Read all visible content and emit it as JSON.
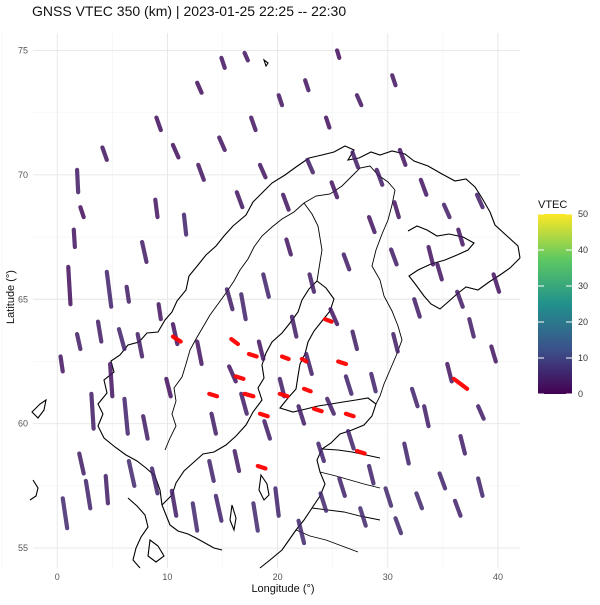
{
  "chart_data": {
    "type": "scatter",
    "title": "GNSS VTEC 350 (km) | 2023-01-25 22:25 -- 22:30",
    "xlabel": "Longitude (°)",
    "ylabel": "Latitude (°)",
    "xlim": [
      -2.2,
      42.0
    ],
    "ylim": [
      54.2,
      75.7
    ],
    "x_ticks": [
      0,
      10,
      20,
      30,
      40
    ],
    "y_ticks": [
      55,
      60,
      65,
      70,
      75
    ],
    "grid": true,
    "legend": {
      "title": "VTEC",
      "placement": "right",
      "range": [
        0,
        50
      ],
      "ticks": [
        0,
        10,
        20,
        30,
        40,
        50
      ],
      "colormap": "viridis"
    },
    "colors": {
      "low": "#440154",
      "mid_low": "#3b3a82",
      "mid": "#21918c",
      "mid_high": "#5ec962",
      "high": "#fde725",
      "outlier": "#ff0000"
    },
    "series": [
      {
        "segments": [
          [
            1.0,
            66.3,
            1.2,
            64.8,
            2
          ],
          [
            1.8,
            70.2,
            1.9,
            69.3,
            4
          ],
          [
            1.5,
            67.8,
            1.6,
            67.1,
            3
          ],
          [
            2.1,
            68.7,
            2.4,
            68.3,
            2
          ],
          [
            4.5,
            66.1,
            4.9,
            64.7,
            5
          ],
          [
            6.3,
            65.5,
            6.5,
            64.9,
            4
          ],
          [
            7.7,
            67.3,
            8.1,
            66.5,
            4
          ],
          [
            8.9,
            69.0,
            9.1,
            68.3,
            3
          ],
          [
            11.5,
            68.4,
            11.7,
            67.6,
            5
          ],
          [
            9.2,
            64.8,
            9.4,
            64.2,
            3
          ],
          [
            3.1,
            61.2,
            3.3,
            59.8,
            4
          ],
          [
            4.8,
            62.4,
            5.0,
            61.1,
            3
          ],
          [
            6.1,
            61.0,
            6.4,
            59.6,
            5
          ],
          [
            7.8,
            60.3,
            8.2,
            59.4,
            4
          ],
          [
            9.9,
            61.8,
            10.3,
            61.1,
            2
          ],
          [
            0.5,
            57.0,
            0.9,
            55.8,
            6
          ],
          [
            2.6,
            57.7,
            3.0,
            56.6,
            5
          ],
          [
            4.4,
            57.9,
            4.6,
            56.8,
            4
          ],
          [
            6.5,
            58.5,
            7.0,
            57.5,
            6
          ],
          [
            8.6,
            58.2,
            9.1,
            57.2,
            5
          ],
          [
            10.4,
            57.3,
            10.8,
            56.3,
            4
          ],
          [
            12.3,
            56.8,
            12.7,
            55.7,
            6
          ],
          [
            14.4,
            57.1,
            14.9,
            56.1,
            5
          ],
          [
            16.1,
            58.9,
            16.5,
            58.1,
            4
          ],
          [
            14.0,
            60.4,
            14.4,
            59.6,
            4
          ],
          [
            15.6,
            62.3,
            16.2,
            61.7,
            3
          ],
          [
            18.3,
            63.3,
            18.7,
            62.6,
            3
          ],
          [
            21.3,
            64.3,
            21.7,
            63.5,
            4
          ],
          [
            16.7,
            65.2,
            17.1,
            64.2,
            5
          ],
          [
            18.7,
            66.0,
            19.2,
            65.1,
            5
          ],
          [
            15.4,
            65.4,
            15.9,
            64.6,
            4
          ],
          [
            20.8,
            67.4,
            21.2,
            66.8,
            3
          ],
          [
            22.9,
            66.0,
            23.3,
            65.3,
            4
          ],
          [
            24.8,
            64.6,
            25.4,
            64.0,
            3
          ],
          [
            26.8,
            63.7,
            27.2,
            63.0,
            4
          ],
          [
            28.5,
            62.0,
            28.9,
            61.3,
            5
          ],
          [
            30.5,
            63.6,
            30.9,
            62.9,
            4
          ],
          [
            32.4,
            65.0,
            32.9,
            64.3,
            4
          ],
          [
            34.5,
            66.4,
            34.9,
            65.8,
            3
          ],
          [
            36.4,
            67.8,
            36.8,
            67.2,
            3
          ],
          [
            38.1,
            69.2,
            38.6,
            68.7,
            4
          ],
          [
            39.6,
            66.0,
            40.1,
            65.3,
            3
          ],
          [
            37.4,
            64.2,
            37.8,
            63.5,
            4
          ],
          [
            35.4,
            62.4,
            35.8,
            61.7,
            3
          ],
          [
            33.3,
            60.7,
            33.7,
            59.9,
            4
          ],
          [
            31.5,
            59.2,
            31.9,
            58.4,
            5
          ],
          [
            29.8,
            57.4,
            30.3,
            56.7,
            6
          ],
          [
            27.5,
            56.6,
            28.0,
            55.9,
            6
          ],
          [
            25.6,
            57.8,
            26.1,
            57.1,
            5
          ],
          [
            23.7,
            59.2,
            24.2,
            58.5,
            5
          ],
          [
            21.9,
            60.7,
            22.4,
            60.0,
            4
          ],
          [
            20.2,
            61.8,
            20.6,
            61.1,
            4
          ],
          [
            24.5,
            61.0,
            25.1,
            60.4,
            4
          ],
          [
            26.4,
            59.7,
            26.9,
            59.0,
            5
          ],
          [
            28.3,
            58.3,
            28.7,
            57.6,
            5
          ],
          [
            30.7,
            56.2,
            31.2,
            55.6,
            6
          ],
          [
            32.6,
            57.2,
            33.1,
            56.6,
            6
          ],
          [
            34.7,
            58.0,
            35.2,
            57.4,
            5
          ],
          [
            36.6,
            59.5,
            37.0,
            58.8,
            4
          ],
          [
            38.2,
            60.7,
            38.7,
            60.2,
            4
          ],
          [
            16.3,
            69.3,
            16.8,
            68.7,
            3
          ],
          [
            18.4,
            70.4,
            18.9,
            69.9,
            3
          ],
          [
            20.5,
            69.2,
            21.0,
            68.6,
            3
          ],
          [
            22.7,
            70.6,
            23.2,
            70.1,
            4
          ],
          [
            24.9,
            69.7,
            25.4,
            69.1,
            3
          ],
          [
            26.8,
            70.9,
            27.3,
            70.3,
            4
          ],
          [
            29.0,
            70.2,
            29.5,
            69.6,
            4
          ],
          [
            31.1,
            71.0,
            31.6,
            70.4,
            3
          ],
          [
            33.0,
            69.8,
            33.5,
            69.2,
            3
          ],
          [
            35.1,
            68.8,
            35.6,
            68.3,
            4
          ],
          [
            28.3,
            68.3,
            28.8,
            67.7,
            3
          ],
          [
            30.3,
            67.0,
            30.8,
            66.4,
            4
          ],
          [
            26.0,
            66.8,
            26.5,
            66.2,
            4
          ],
          [
            12.8,
            70.4,
            13.3,
            69.8,
            3
          ],
          [
            14.7,
            71.5,
            15.2,
            71.0,
            3
          ],
          [
            10.5,
            71.2,
            11.0,
            70.7,
            2
          ],
          [
            17.6,
            72.3,
            18.0,
            71.8,
            3
          ],
          [
            20.1,
            73.2,
            20.4,
            72.8,
            3
          ],
          [
            22.5,
            73.8,
            22.8,
            73.4,
            3
          ],
          [
            24.4,
            72.3,
            24.7,
            71.9,
            2
          ],
          [
            27.2,
            73.2,
            27.6,
            72.8,
            3
          ],
          [
            30.4,
            74.0,
            30.7,
            73.6,
            3
          ],
          [
            12.7,
            73.7,
            13.1,
            73.3,
            2
          ],
          [
            14.9,
            74.7,
            15.2,
            74.3,
            3
          ],
          [
            17.0,
            74.9,
            17.3,
            74.6,
            3
          ],
          [
            9.0,
            72.3,
            9.4,
            71.8,
            2
          ],
          [
            4.1,
            71.1,
            4.5,
            70.6,
            3
          ],
          [
            25.4,
            75.0,
            25.6,
            74.7,
            2
          ],
          [
            0.3,
            62.7,
            0.5,
            62.1,
            3
          ],
          [
            1.8,
            63.6,
            2.1,
            63.0,
            4
          ],
          [
            3.7,
            64.1,
            4.0,
            63.3,
            4
          ],
          [
            5.6,
            63.8,
            6.1,
            63.0,
            5
          ],
          [
            7.3,
            63.6,
            7.7,
            62.7,
            4
          ],
          [
            10.5,
            64.0,
            10.9,
            63.2,
            3
          ],
          [
            12.7,
            63.3,
            13.1,
            62.4,
            3
          ],
          [
            2.0,
            58.8,
            2.4,
            58.0,
            4
          ],
          [
            17.8,
            56.8,
            18.2,
            55.7,
            6
          ],
          [
            19.8,
            57.4,
            20.1,
            56.3,
            5
          ],
          [
            21.9,
            56.1,
            22.4,
            55.2,
            6
          ],
          [
            23.9,
            57.2,
            24.4,
            56.5,
            6
          ],
          [
            36.1,
            56.9,
            36.6,
            56.3,
            5
          ],
          [
            38.2,
            57.8,
            38.6,
            57.1,
            5
          ],
          [
            39.4,
            63.1,
            39.8,
            62.5,
            3
          ],
          [
            36.3,
            65.3,
            36.8,
            64.7,
            4
          ],
          [
            33.7,
            67.1,
            34.1,
            66.4,
            3
          ],
          [
            30.6,
            68.9,
            31.0,
            68.3,
            3
          ],
          [
            32.2,
            61.4,
            32.7,
            60.7,
            5
          ],
          [
            26.2,
            61.9,
            26.7,
            61.2,
            5
          ],
          [
            22.6,
            62.8,
            23.1,
            62.0,
            4
          ],
          [
            18.8,
            60.1,
            19.3,
            59.4,
            4
          ],
          [
            16.7,
            61.2,
            17.2,
            60.4,
            4
          ],
          [
            13.8,
            58.5,
            14.2,
            57.7,
            5
          ]
        ]
      },
      {
        "segments": [
          [
            10.5,
            63.5,
            11.2,
            63.3,
            40
          ],
          [
            15.8,
            63.4,
            16.4,
            63.2,
            40
          ],
          [
            17.4,
            62.8,
            18.1,
            62.7,
            40
          ],
          [
            20.4,
            62.7,
            21.0,
            62.6,
            40
          ],
          [
            22.2,
            62.6,
            22.6,
            62.5,
            40
          ],
          [
            25.5,
            62.5,
            26.2,
            62.4,
            40
          ],
          [
            24.3,
            64.2,
            24.9,
            64.1,
            40
          ],
          [
            16.2,
            61.9,
            16.9,
            61.8,
            40
          ],
          [
            13.8,
            61.2,
            14.5,
            61.1,
            40
          ],
          [
            17.0,
            61.2,
            17.8,
            61.1,
            40
          ],
          [
            20.2,
            61.2,
            20.9,
            61.1,
            40
          ],
          [
            22.4,
            61.4,
            23.0,
            61.3,
            40
          ],
          [
            23.3,
            60.6,
            24.0,
            60.5,
            40
          ],
          [
            18.4,
            60.4,
            19.1,
            60.3,
            40
          ],
          [
            26.2,
            60.4,
            26.9,
            60.3,
            40
          ],
          [
            18.2,
            58.3,
            18.9,
            58.2,
            40
          ],
          [
            27.2,
            58.9,
            27.9,
            58.8,
            40
          ],
          [
            36.0,
            61.8,
            37.2,
            61.4,
            40
          ]
        ]
      }
    ]
  }
}
